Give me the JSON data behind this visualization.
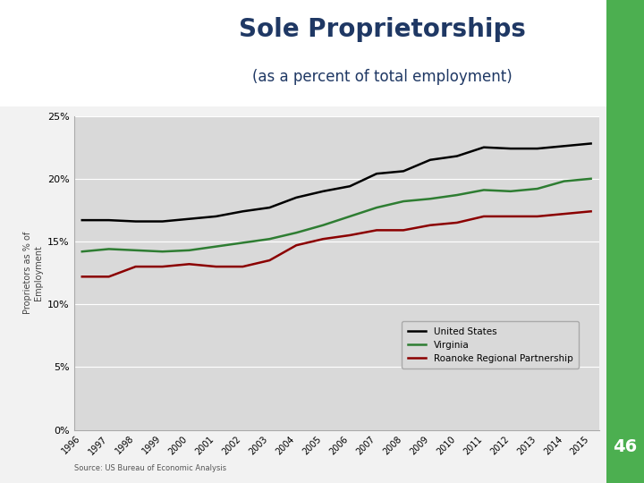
{
  "title": "Sole Proprietorships",
  "subtitle": "(as a percent of total employment)",
  "title_color": "#1f3864",
  "years": [
    1996,
    1997,
    1998,
    1999,
    2000,
    2001,
    2002,
    2003,
    2004,
    2005,
    2006,
    2007,
    2008,
    2009,
    2010,
    2011,
    2012,
    2013,
    2014,
    2015
  ],
  "us": [
    0.167,
    0.167,
    0.166,
    0.166,
    0.168,
    0.17,
    0.174,
    0.177,
    0.185,
    0.19,
    0.194,
    0.204,
    0.206,
    0.215,
    0.218,
    0.225,
    0.224,
    0.224,
    0.226,
    0.228
  ],
  "virginia": [
    0.142,
    0.144,
    0.143,
    0.142,
    0.143,
    0.146,
    0.149,
    0.152,
    0.157,
    0.163,
    0.17,
    0.177,
    0.182,
    0.184,
    0.187,
    0.191,
    0.19,
    0.192,
    0.198,
    0.2
  ],
  "roanoke": [
    0.122,
    0.122,
    0.13,
    0.13,
    0.132,
    0.13,
    0.13,
    0.135,
    0.147,
    0.152,
    0.155,
    0.159,
    0.159,
    0.163,
    0.165,
    0.17,
    0.17,
    0.17,
    0.172,
    0.174
  ],
  "us_color": "#000000",
  "virginia_color": "#2e7d32",
  "roanoke_color": "#8b0000",
  "ylim": [
    0,
    0.25
  ],
  "yticks": [
    0.0,
    0.05,
    0.1,
    0.15,
    0.2,
    0.25
  ],
  "plot_bg": "#d9d9d9",
  "source_text": "Source: US Bureau of Economic Analysis",
  "accent_color": "#4caf50",
  "page_number": "46",
  "header_bg": "#ffffff",
  "slide_bg": "#f2f2f2"
}
